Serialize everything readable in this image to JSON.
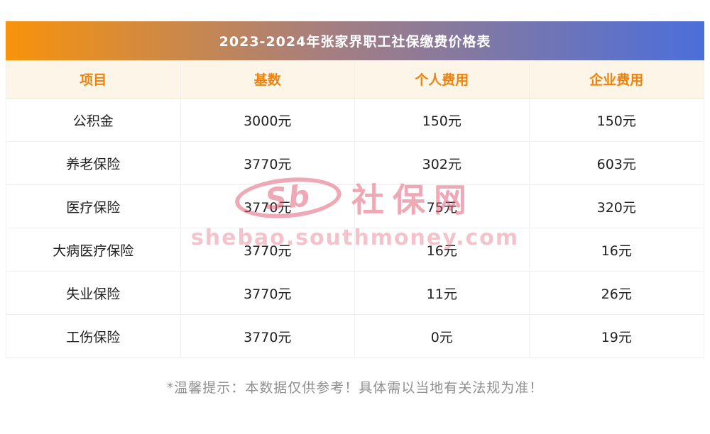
{
  "title": "2023-2024年张家界职工社保缴费价格表",
  "table": {
    "headers": [
      "项目",
      "基数",
      "个人费用",
      "企业费用"
    ],
    "rows": [
      [
        "公积金",
        "3000元",
        "150元",
        "150元"
      ],
      [
        "养老保险",
        "3770元",
        "302元",
        "603元"
      ],
      [
        "医疗保险",
        "3770元",
        "75元",
        "320元"
      ],
      [
        "大病医疗保险",
        "3770元",
        "16元",
        "16元"
      ],
      [
        "失业保险",
        "3770元",
        "11元",
        "26元"
      ],
      [
        "工伤保险",
        "3770元",
        "0元",
        "19元"
      ]
    ]
  },
  "watermark": {
    "logo_letters": "Sb",
    "logo_text": "社保网",
    "url_text": "shebao.southmoney.com"
  },
  "footer_note": "*温馨提示：本数据仅供参考！具体需以当地有关法规为准！",
  "colors": {
    "title_gradient_start": "#f8930b",
    "title_gradient_end": "#4b6edb",
    "header_bg": "#fdf5e8",
    "header_text": "#f0820a",
    "body_text": "#212121",
    "watermark_pink": "#de526e",
    "footer_text": "#8f8f8f"
  },
  "chart_data": {
    "type": "table",
    "title": "2023-2024年张家界职工社保缴费价格表",
    "columns": [
      "项目",
      "基数",
      "个人费用",
      "企业费用"
    ],
    "rows": [
      {
        "项目": "公积金",
        "基数": "3000元",
        "个人费用": "150元",
        "企业费用": "150元"
      },
      {
        "项目": "养老保险",
        "基数": "3770元",
        "个人费用": "302元",
        "企业费用": "603元"
      },
      {
        "项目": "医疗保险",
        "基数": "3770元",
        "个人费用": "75元",
        "企业费用": "320元"
      },
      {
        "项目": "大病医疗保险",
        "基数": "3770元",
        "个人费用": "16元",
        "企业费用": "16元"
      },
      {
        "项目": "失业保险",
        "基数": "3770元",
        "个人费用": "11元",
        "企业费用": "26元"
      },
      {
        "项目": "工伤保险",
        "基数": "3770元",
        "个人费用": "0元",
        "企业费用": "19元"
      }
    ],
    "note": "*温馨提示：本数据仅供参考！具体需以当地有关法规为准！"
  }
}
